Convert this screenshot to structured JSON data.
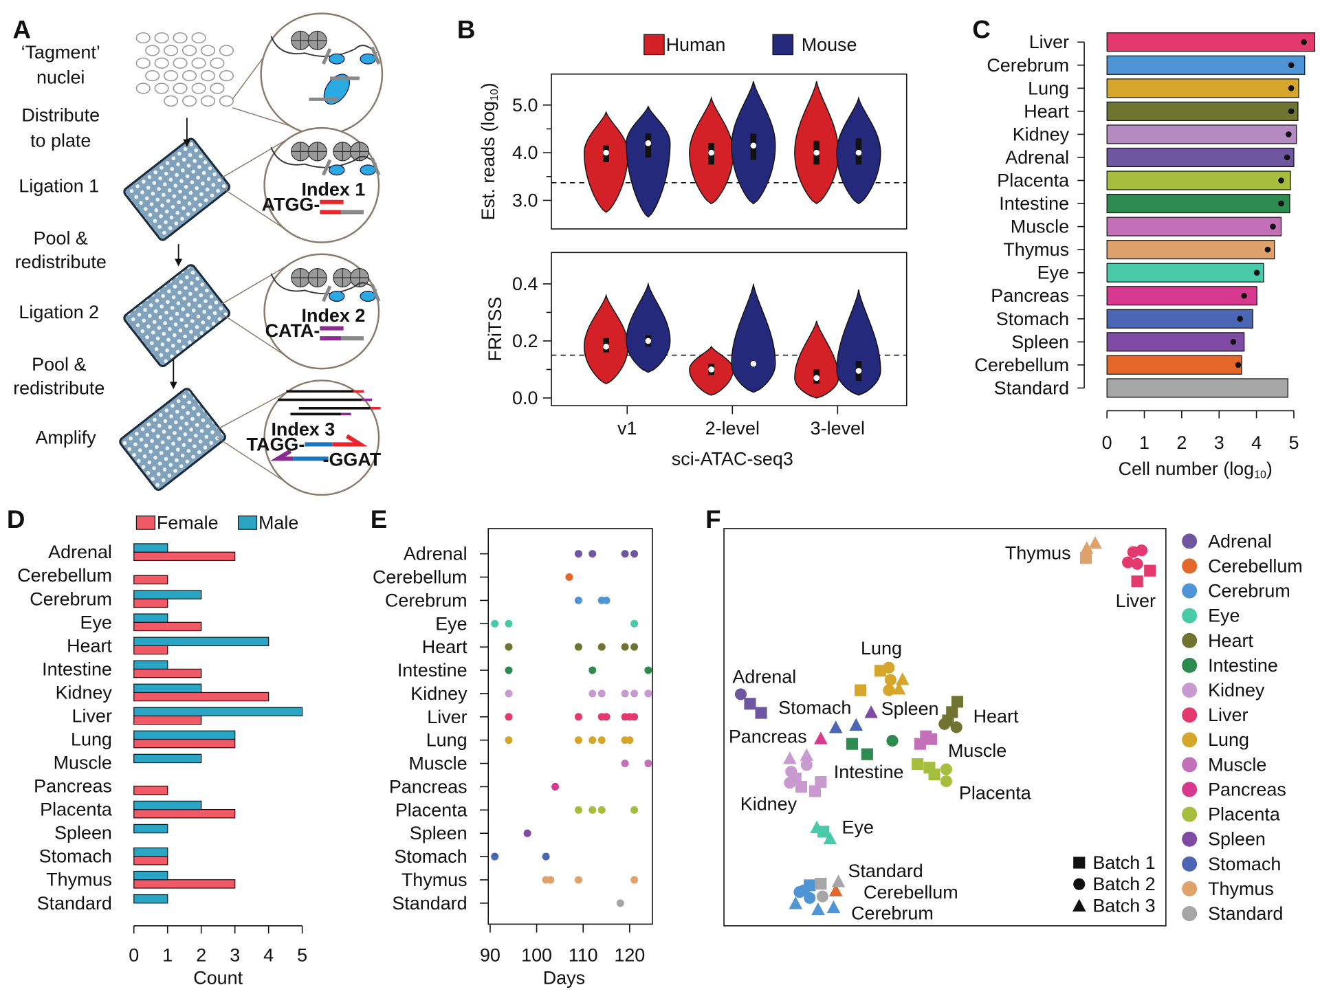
{
  "panels": [
    "A",
    "B",
    "C",
    "D",
    "E",
    "F"
  ],
  "diagram": {
    "steps": [
      {
        "lines": [
          "‘Tagment’",
          "nuclei"
        ]
      },
      {
        "lines": [
          "Distribute",
          "to plate"
        ]
      },
      {
        "lines": [
          "Ligation 1"
        ]
      },
      {
        "lines": [
          "Pool &",
          "redistribute"
        ]
      },
      {
        "lines": [
          "Ligation 2"
        ]
      },
      {
        "lines": [
          "Pool &",
          "redistribute"
        ]
      },
      {
        "lines": [
          "Amplify"
        ]
      }
    ],
    "index_labels": [
      {
        "name": "Index 1",
        "seq": "ATGG-",
        "color": "#e8262b"
      },
      {
        "name": "Index 2",
        "seq": "CATA-",
        "color": "#8b2b91"
      },
      {
        "name": "Index 3",
        "seq": "TAGG-",
        "seq2": "-GGAT",
        "color": "#1b75bb"
      }
    ]
  },
  "chart_data": [
    {
      "type": "violin",
      "ylabel": [
        "Est. reads (log",
        "10",
        ")"
      ],
      "ylim": [
        2.4,
        5.65
      ],
      "yticks": [
        {
          "value": 3,
          "label": "3.0"
        },
        {
          "value": 4,
          "label": "4.0"
        },
        {
          "value": 5,
          "label": "5.0"
        }
      ],
      "yminorticks": [
        3.5,
        4.5
      ],
      "hline": 3.37,
      "series": [
        {
          "name": "Human",
          "color": "#d42027",
          "values": [
            4.0,
            4.0,
            4.0
          ],
          "q1": [
            3.8,
            3.75,
            3.75
          ],
          "q3": [
            4.15,
            4.2,
            4.25
          ],
          "min": [
            2.75,
            2.93,
            2.93
          ],
          "max": [
            4.85,
            5.15,
            5.5
          ]
        },
        {
          "name": "Mouse",
          "color": "#25297c",
          "values": [
            4.2,
            4.15,
            4.0
          ],
          "q1": [
            3.9,
            3.85,
            3.75
          ],
          "q3": [
            4.4,
            4.4,
            4.3
          ],
          "min": [
            2.65,
            2.93,
            2.93
          ],
          "max": [
            4.97,
            5.5,
            5.15
          ]
        }
      ]
    },
    {
      "type": "violin",
      "ylabel": [
        "FRiTSS"
      ],
      "ylim": [
        -0.027,
        0.51
      ],
      "yticks": [
        {
          "value": 0,
          "label": "0.0"
        },
        0.2,
        0.4
      ],
      "yminorticks": [
        0.1,
        0.3
      ],
      "hline": 0.15,
      "categories": [
        "v1",
        "2-level",
        "3-level"
      ],
      "xlabel": "sci-ATAC-seq3",
      "series": [
        {
          "color": "#d42027",
          "values": [
            0.18,
            0.1,
            0.07
          ],
          "q1": [
            0.16,
            0.08,
            0.05
          ],
          "q3": [
            0.21,
            0.12,
            0.1
          ],
          "min": [
            0.05,
            0.01,
            0.0
          ],
          "max": [
            0.36,
            0.18,
            0.27
          ]
        },
        {
          "color": "#25297c",
          "values": [
            0.2,
            0.12,
            0.095
          ],
          "q1": [
            0.18,
            0.11,
            0.06
          ],
          "q3": [
            0.22,
            0.13,
            0.13
          ],
          "min": [
            0.09,
            0.02,
            0.01
          ],
          "max": [
            0.4,
            0.4,
            0.38
          ]
        }
      ]
    },
    {
      "type": "barh",
      "xlabel": [
        "Cell number (log",
        "10",
        ")"
      ],
      "xlim": [
        0,
        5.6
      ],
      "xticks": [
        0,
        1,
        2,
        3,
        4,
        5
      ],
      "categories": [
        "Liver",
        "Cerebrum",
        "Lung",
        "Heart",
        "Kidney",
        "Adrenal",
        "Placenta",
        "Intestine",
        "Muscle",
        "Thymus",
        "Eye",
        "Pancreas",
        "Stomach",
        "Spleen",
        "Cerebellum",
        "Standard"
      ],
      "values": [
        5.56,
        5.29,
        5.13,
        5.11,
        5.07,
        5.0,
        4.91,
        4.89,
        4.66,
        4.48,
        4.19,
        4.01,
        3.9,
        3.67,
        3.6,
        4.84
      ],
      "dot_values": [
        5.27,
        4.93,
        4.93,
        4.93,
        4.86,
        4.82,
        4.66,
        4.66,
        4.44,
        4.3,
        4.01,
        3.67,
        3.56,
        3.38,
        3.51,
        null
      ],
      "colors": [
        "#e3396e",
        "#4f95d6",
        "#d6a52c",
        "#6f7530",
        "#b58ac0",
        "#6e56a0",
        "#a5be3e",
        "#2e8b4f",
        "#c470b8",
        "#e0a26b",
        "#48c9a8",
        "#d6398e",
        "#4a66b5",
        "#7e4aa4",
        "#e4672a",
        "#a6a6a6"
      ]
    },
    {
      "type": "grouped_barh",
      "xlabel": "Count",
      "xlim": [
        0,
        5
      ],
      "xticks": [
        0,
        1,
        2,
        3,
        4,
        5
      ],
      "categories": [
        "Adrenal",
        "Cerebellum",
        "Cerebrum",
        "Eye",
        "Heart",
        "Intestine",
        "Kidney",
        "Liver",
        "Lung",
        "Muscle",
        "Pancreas",
        "Placenta",
        "Spleen",
        "Stomach",
        "Thymus",
        "Standard"
      ],
      "series": [
        {
          "name": "Female",
          "color": "#f05a66",
          "values": [
            3,
            1,
            1,
            2,
            1,
            2,
            4,
            2,
            3,
            0,
            1,
            3,
            0,
            1,
            3,
            0
          ]
        },
        {
          "name": "Male",
          "color": "#2ba5c4",
          "values": [
            1,
            0,
            2,
            1,
            4,
            1,
            2,
            5,
            3,
            2,
            0,
            2,
            1,
            1,
            1,
            1
          ]
        }
      ]
    },
    {
      "type": "strip",
      "xlabel": "Days",
      "xlim": [
        89.6,
        124.9
      ],
      "xticks": [
        90,
        100,
        110,
        120
      ],
      "categories": [
        "Adrenal",
        "Cerebellum",
        "Cerebrum",
        "Eye",
        "Heart",
        "Intestine",
        "Kidney",
        "Liver",
        "Lung",
        "Muscle",
        "Pancreas",
        "Placenta",
        "Spleen",
        "Stomach",
        "Thymus",
        "Standard"
      ],
      "series": [
        {
          "color": "#6e56a0",
          "values": [
            109,
            112,
            119,
            121
          ]
        },
        {
          "color": "#e4672a",
          "values": [
            107
          ]
        },
        {
          "color": "#4f95d6",
          "values": [
            109,
            114,
            115
          ]
        },
        {
          "color": "#48c9a8",
          "values": [
            91,
            94,
            121
          ]
        },
        {
          "color": "#6f7530",
          "values": [
            94,
            109,
            114,
            119,
            121
          ]
        },
        {
          "color": "#2e8b4f",
          "values": [
            94,
            112,
            124
          ]
        },
        {
          "color": "#c89ad0",
          "values": [
            94,
            112,
            114,
            119,
            121,
            124
          ]
        },
        {
          "color": "#e3396e",
          "values": [
            94,
            109,
            114,
            115,
            119,
            120,
            121
          ]
        },
        {
          "color": "#d6a52c",
          "values": [
            94,
            109,
            112,
            114,
            119,
            120
          ]
        },
        {
          "color": "#c470b8",
          "values": [
            119,
            124
          ]
        },
        {
          "color": "#d6398e",
          "values": [
            104
          ]
        },
        {
          "color": "#a5be3e",
          "values": [
            109,
            112,
            114,
            121
          ]
        },
        {
          "color": "#7e4aa4",
          "values": [
            98
          ]
        },
        {
          "color": "#4a66b5",
          "values": [
            91,
            102
          ]
        },
        {
          "color": "#e0a26b",
          "values": [
            102,
            103,
            109,
            121
          ]
        },
        {
          "color": "#a6a6a6",
          "values": [
            118
          ]
        }
      ]
    },
    {
      "type": "embedding",
      "xlim": [
        0,
        100
      ],
      "ylim": [
        0,
        100
      ],
      "batch_legend": [
        "Batch 1",
        "Batch 2",
        "Batch 3"
      ],
      "series": [
        {
          "name": "Adrenal",
          "color": "#6e56a0",
          "x": [
            3.8,
            5.9,
            8.4
          ],
          "y": [
            58.3,
            55.9,
            53.6
          ],
          "batch": [
            2,
            1,
            1
          ]
        },
        {
          "name": "Cerebellum",
          "color": "#e4672a",
          "x": [
            25.3
          ],
          "y": [
            8.9
          ],
          "batch": [
            3
          ]
        },
        {
          "name": "Cerebrum",
          "color": "#4f95d6",
          "x": [
            17.1,
            19.4,
            18.1,
            16.2,
            19.4,
            21.3,
            24.8
          ],
          "y": [
            8.5,
            10.2,
            8.9,
            5.7,
            7.0,
            4.2,
            4.7
          ],
          "batch": [
            2,
            1,
            2,
            3,
            2,
            3,
            3
          ]
        },
        {
          "name": "Eye",
          "color": "#48c9a8",
          "x": [
            21.0,
            22.5,
            24.0
          ],
          "y": [
            24.8,
            23.7,
            22.0
          ],
          "batch": [
            3,
            1,
            3
          ]
        },
        {
          "name": "Heart",
          "color": "#6f7530",
          "x": [
            52.8,
            51.6,
            50.7,
            49.9,
            52.6
          ],
          "y": [
            56.4,
            53.8,
            51.7,
            50.8,
            50.0
          ],
          "batch": [
            1,
            1,
            1,
            2,
            2
          ]
        },
        {
          "name": "Intestine",
          "color": "#2e8b4f",
          "x": [
            29.0,
            32.4,
            38.1
          ],
          "y": [
            45.8,
            43.2,
            46.6
          ],
          "batch": [
            1,
            1,
            2
          ]
        },
        {
          "name": "Kidney",
          "color": "#c89ad0",
          "x": [
            14.9,
            18.7,
            15.2,
            18.7,
            16.2,
            17.5,
            21.9,
            20.6,
            14.9
          ],
          "y": [
            42.2,
            43.0,
            38.8,
            40.5,
            37.1,
            35.0,
            36.2,
            33.9,
            36.0
          ],
          "batch": [
            3,
            3,
            2,
            2,
            1,
            1,
            1,
            1,
            2
          ]
        },
        {
          "name": "Liver",
          "color": "#e3396e",
          "x": [
            92.6,
            94.5,
            91.4,
            93.5,
            96.4,
            93.5
          ],
          "y": [
            94.1,
            94.5,
            91.5,
            91.1,
            89.4,
            86.7
          ],
          "batch": [
            2,
            2,
            2,
            2,
            1,
            1
          ]
        },
        {
          "name": "Lung",
          "color": "#d6a52c",
          "x": [
            35.4,
            37.3,
            37.7,
            30.9,
            40.4,
            39.6,
            37.3
          ],
          "y": [
            64.2,
            65.0,
            61.9,
            59.3,
            62.1,
            59.7,
            59.3
          ],
          "batch": [
            1,
            2,
            2,
            1,
            3,
            3,
            2
          ]
        },
        {
          "name": "Muscle",
          "color": "#c470b8",
          "x": [
            44.4,
            46.9,
            45.7
          ],
          "y": [
            45.8,
            47.0,
            47.7
          ],
          "batch": [
            1,
            1,
            1
          ]
        },
        {
          "name": "Pancreas",
          "color": "#d6398e",
          "x": [
            21.9
          ],
          "y": [
            47.2
          ],
          "batch": [
            3
          ]
        },
        {
          "name": "Placenta",
          "color": "#a5be3e",
          "x": [
            43.8,
            46.5,
            47.6,
            50.3,
            50.3
          ],
          "y": [
            40.7,
            39.8,
            38.1,
            39.4,
            36.4
          ],
          "batch": [
            1,
            1,
            1,
            2,
            2
          ]
        },
        {
          "name": "Spleen",
          "color": "#7e4aa4",
          "x": [
            33.3
          ],
          "y": [
            53.8
          ],
          "batch": [
            3
          ]
        },
        {
          "name": "Stomach",
          "color": "#4a66b5",
          "x": [
            25.3,
            29.9
          ],
          "y": [
            50.0,
            50.6
          ],
          "batch": [
            3,
            3
          ]
        },
        {
          "name": "Thymus",
          "color": "#e0a26b",
          "x": [
            81.9,
            82.1,
            84.0
          ],
          "y": [
            92.6,
            95.1,
            96.4
          ],
          "batch": [
            1,
            3,
            3
          ]
        },
        {
          "name": "Standard",
          "color": "#a6a6a6",
          "x": [
            21.9,
            25.9,
            22.3
          ],
          "y": [
            10.6,
            11.2,
            7.4
          ],
          "batch": [
            1,
            3,
            2
          ]
        }
      ]
    }
  ]
}
